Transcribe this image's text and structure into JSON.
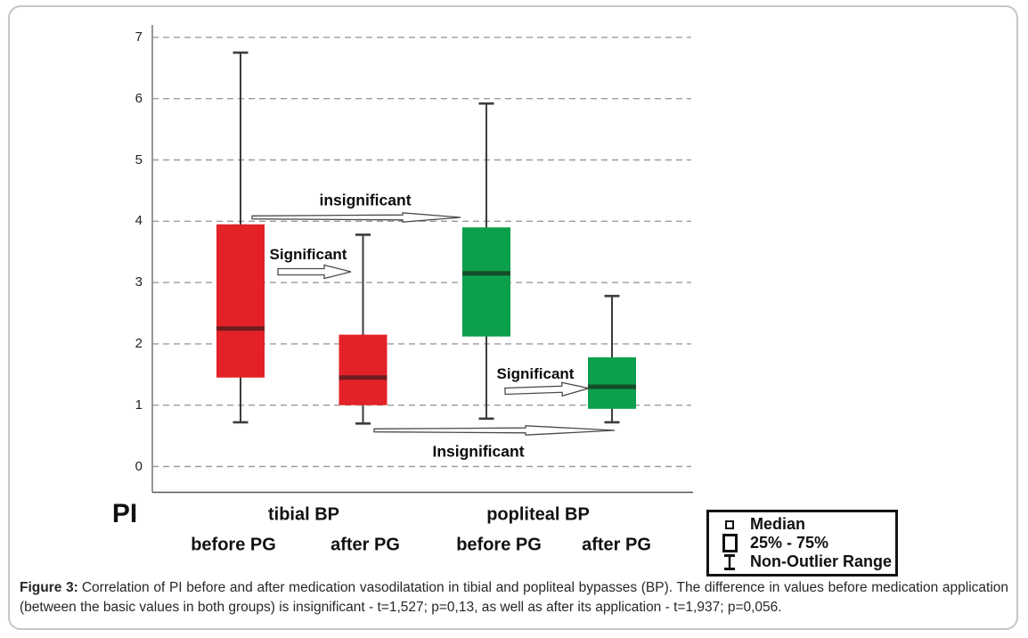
{
  "figure": {
    "caption": {
      "prefix": "Figure 3:",
      "line1": "Correlation of PI before and after medication vasodilatation in tibial and popliteal bypasses (BP). The difference in values before medication application",
      "line2": "(between the basic values in both groups) is insignificant - t=1,527; p=0,13, as well as after its application - t=1,937; p=0,056."
    }
  },
  "axis": {
    "y_label": "PI",
    "y_ticks": [
      "0",
      "1",
      "2",
      "3",
      "4",
      "5",
      "6",
      "7"
    ],
    "group_labels": [
      "tibial BP",
      "popliteal BP"
    ],
    "category_labels": [
      "before PG",
      "after PG",
      "before PG",
      "after PG"
    ]
  },
  "annotations": {
    "top": "insignificant",
    "mid_left": "Significant",
    "mid_right": "Significant",
    "bottom": "Insignificant"
  },
  "legend": {
    "items": [
      {
        "icon": "median-marker-icon",
        "label": "Median"
      },
      {
        "icon": "box-range-icon",
        "label": "25% - 75%"
      },
      {
        "icon": "whisker-range-icon",
        "label": "Non-Outlier Range"
      }
    ]
  },
  "colors": {
    "red_box": "#e32227",
    "red_median": "#6f1b20",
    "green_box": "#0da04c",
    "green_median": "#134d29",
    "whisker": "#3c3c3c",
    "gridline": "#9c9c9c"
  },
  "chart_data": {
    "type": "boxplot",
    "title": "",
    "y_axis_label": "PI",
    "ylim": [
      0,
      7.3
    ],
    "y_ticks": [
      0,
      1,
      2,
      3,
      4,
      5,
      6,
      7
    ],
    "grid": "horizontal-dashed",
    "groups": [
      "tibial BP",
      "popliteal BP"
    ],
    "series": [
      {
        "group": "tibial BP",
        "category": "before PG",
        "color": "#e32227",
        "median_color": "#6f1b20",
        "whisker_low": 0.72,
        "q1": 1.45,
        "median": 2.25,
        "q3": 3.95,
        "whisker_high": 6.75
      },
      {
        "group": "tibial BP",
        "category": "after PG",
        "color": "#e32227",
        "median_color": "#6f1b20",
        "whisker_low": 0.7,
        "q1": 1.0,
        "median": 1.45,
        "q3": 2.15,
        "whisker_high": 3.78
      },
      {
        "group": "popliteal BP",
        "category": "before PG",
        "color": "#0da04c",
        "median_color": "#134d29",
        "whisker_low": 0.78,
        "q1": 2.12,
        "median": 3.15,
        "q3": 3.9,
        "whisker_high": 5.92
      },
      {
        "group": "popliteal BP",
        "category": "after PG",
        "color": "#0da04c",
        "median_color": "#134d29",
        "whisker_low": 0.72,
        "q1": 0.94,
        "median": 1.3,
        "q3": 1.78,
        "whisker_high": 2.78
      }
    ],
    "annotations": [
      {
        "text": "insignificant",
        "between": [
          "tibial BP before PG",
          "popliteal BP before PG"
        ]
      },
      {
        "text": "Significant",
        "between": [
          "tibial BP before PG",
          "tibial BP after PG"
        ]
      },
      {
        "text": "Significant",
        "between": [
          "popliteal BP before PG",
          "popliteal BP after PG"
        ]
      },
      {
        "text": "Insignificant",
        "between": [
          "tibial BP after PG",
          "popliteal BP after PG"
        ]
      }
    ],
    "legend_position": "bottom-right",
    "legend_entries": [
      "Median",
      "25% - 75%",
      "Non-Outlier Range"
    ]
  }
}
